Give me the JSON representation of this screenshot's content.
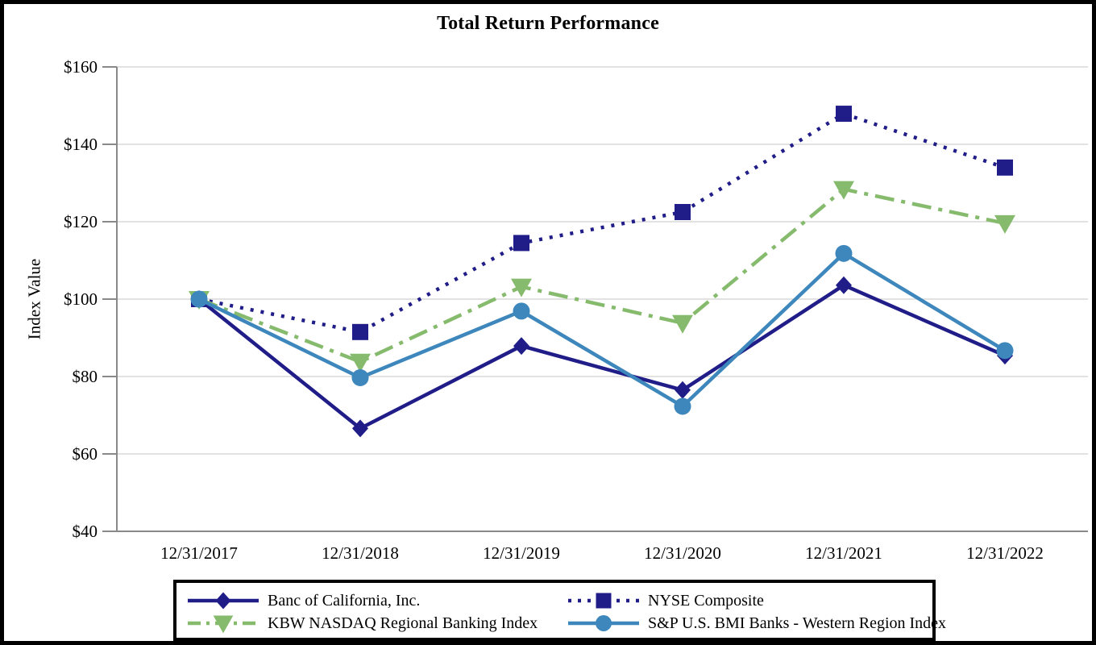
{
  "chart_data": {
    "type": "line",
    "title": "Total Return Performance",
    "ylabel": "Index Value",
    "xlabel": "",
    "categories": [
      "12/31/2017",
      "12/31/2018",
      "12/31/2019",
      "12/31/2020",
      "12/31/2021",
      "12/31/2022"
    ],
    "series": [
      {
        "name": "Banc of California, Inc.",
        "values": [
          100.0,
          66.6,
          87.9,
          76.5,
          103.6,
          85.4
        ],
        "color": "#201D88",
        "marker": "diamond",
        "linestyle": "solid"
      },
      {
        "name": "NYSE Composite",
        "values": [
          100.0,
          91.5,
          114.5,
          122.5,
          147.9,
          134.0
        ],
        "color": "#201D88",
        "marker": "square",
        "linestyle": "dotted"
      },
      {
        "name": "KBW NASDAQ Regional Banking Index",
        "values": [
          100.0,
          83.8,
          103.2,
          93.8,
          128.4,
          119.6
        ],
        "color": "#86BB6D",
        "marker": "triangle-down",
        "linestyle": "dashdot"
      },
      {
        "name": "S&P U.S. BMI Banks - Western Region Index",
        "values": [
          100.0,
          79.7,
          96.9,
          72.3,
          111.8,
          86.7
        ],
        "color": "#3D87BC",
        "marker": "circle",
        "linestyle": "solid"
      }
    ],
    "ylim": [
      40,
      160
    ],
    "ytick_step": 20,
    "ytick_prefix": "$",
    "grid": true,
    "legend_position": "bottom",
    "axis_color": "#898989",
    "gridline_color": "#D9D9D9",
    "frame_color": "#000000"
  }
}
